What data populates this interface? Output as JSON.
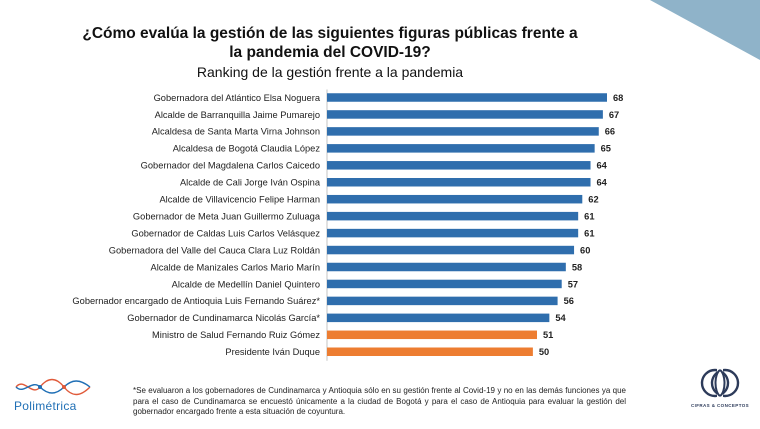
{
  "header": {
    "title": "¿Cómo evalúa la gestión de las siguientes figuras públicas frente a la pandemia del COVID-19?",
    "subtitle": "Ranking de la gestión frente a la pandemia"
  },
  "chart_data": {
    "type": "bar",
    "orientation": "horizontal",
    "title": "¿Cómo evalúa la gestión de las siguientes figuras públicas frente a la pandemia del COVID-19?",
    "subtitle": "Ranking de la gestión frente a la pandemia",
    "xlabel": "",
    "ylabel": "",
    "grid": false,
    "data_labels": true,
    "categories": [
      "Gobernadora del Atlántico Elsa Noguera",
      "Alcalde de Barranquilla Jaime Pumarejo",
      "Alcaldesa de Santa Marta Virna Johnson",
      "Alcaldesa de Bogotá Claudia López",
      "Gobernador del Magdalena Carlos Caicedo",
      "Alcalde de Cali Jorge Iván Ospina",
      "Alcalde de Villavicencio Felipe Harman",
      "Gobernador de Meta Juan Guillermo Zuluaga",
      "Gobernador de Caldas Luis Carlos Velásquez",
      "Gobernadora del Valle del Cauca Clara Luz Roldán",
      "Alcalde de Manizales Carlos Mario Marín",
      "Alcalde de Medellín Daniel Quintero",
      "Gobernador encargado de Antioquia Luis Fernando Suárez*",
      "Gobernador de Cundinamarca Nicolás García*",
      "Ministro de Salud Fernando Ruiz Gómez",
      "Presidente Iván Duque"
    ],
    "values": [
      68,
      67,
      66,
      65,
      64,
      64,
      62,
      61,
      61,
      60,
      58,
      57,
      56,
      54,
      51,
      50
    ],
    "bar_colors": [
      "#2f6ead",
      "#2f6ead",
      "#2f6ead",
      "#2f6ead",
      "#2f6ead",
      "#2f6ead",
      "#2f6ead",
      "#2f6ead",
      "#2f6ead",
      "#2f6ead",
      "#2f6ead",
      "#2f6ead",
      "#2f6ead",
      "#2f6ead",
      "#ed7d31",
      "#ed7d31"
    ]
  },
  "footnote": "*Se evaluaron a los gobernadores de Cundinamarca y Antioquia sólo en su gestión frente al Covid-19 y no en las demás funciones ya que para el caso de Cundinamarca se encuestó únicamente a la ciudad de Bogotá y para el caso de Antioquia para evaluar la gestión del gobernador encargado frente a esta situación de coyuntura.",
  "logos": {
    "left_brand": "Polimétrica",
    "right_brand": "CIFRAS & CONCEPTOS"
  },
  "colors": {
    "accent_blue": "#2f6ead",
    "accent_orange": "#ed7d31",
    "corner": "#8fb3c9"
  }
}
